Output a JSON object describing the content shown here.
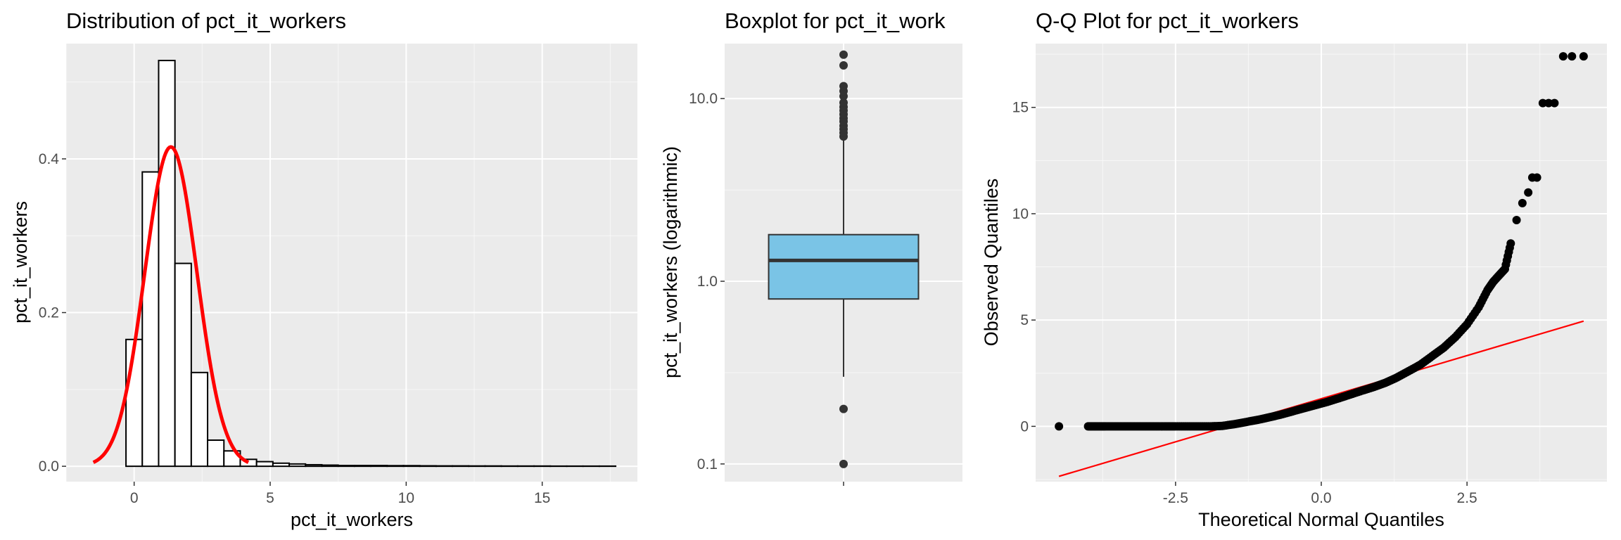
{
  "colors": {
    "panel_bg": "#ebebeb",
    "grid_major": "#ffffff",
    "density": "#ff0000",
    "box_fill": "#7ac4e6",
    "qq_line": "#ff0000",
    "points": "#000000"
  },
  "chart_data": [
    {
      "type": "bar",
      "subtype": "histogram",
      "title": "Distribution of pct_it_workers",
      "xlabel": "pct_it_workers",
      "ylabel": "pct_it_workers",
      "xlim": [
        -2.5,
        18.5
      ],
      "ylim": [
        -0.02,
        0.55
      ],
      "xticks": [
        0,
        5,
        10,
        15
      ],
      "xtick_labels": [
        "0",
        "5",
        "10",
        "15"
      ],
      "yticks": [
        0.0,
        0.2,
        0.4
      ],
      "ytick_labels": [
        "0.0",
        "0.2",
        "0.4"
      ],
      "grid": true,
      "bin_width": 0.6,
      "bins_start": [
        -1.5,
        -0.9,
        -0.3,
        0.3,
        0.9,
        1.5,
        2.1,
        2.7,
        3.3,
        3.9,
        4.5,
        5.1,
        5.7,
        6.3,
        6.9,
        7.5,
        8.1,
        8.7,
        9.3,
        9.9,
        10.5,
        11.1,
        11.7,
        12.3,
        12.9,
        13.5,
        14.1,
        14.7,
        15.3,
        15.9,
        16.5,
        17.1
      ],
      "density": [
        0,
        0,
        0.165,
        0.383,
        0.528,
        0.264,
        0.122,
        0.034,
        0.02,
        0.009,
        0.006,
        0.004,
        0.003,
        0.002,
        0.0015,
        0.001,
        0.001,
        0.001,
        0.0008,
        0.0008,
        0.0006,
        0.0005,
        0.0005,
        0.0004,
        0.0004,
        0.0003,
        0.0003,
        0.0003,
        0.0002,
        0.0002,
        0.0002,
        0.0002
      ],
      "normal_curve": {
        "mean": 1.35,
        "sd": 0.96,
        "x_range": [
          -1.5,
          4.2
        ]
      }
    },
    {
      "type": "box",
      "title": "Boxplot for pct_it_work",
      "ylabel": "pct_it_workers (logarithmic)",
      "scale": "log10",
      "ylim": [
        0.08,
        20
      ],
      "yticks": [
        0.1,
        1.0,
        10.0
      ],
      "ytick_labels": [
        "0.1",
        "1.0",
        "10.0"
      ],
      "grid": true,
      "stats": {
        "lower_whisker": 0.3,
        "q1": 0.8,
        "median": 1.3,
        "q3": 1.8,
        "upper_whisker": 6.0
      },
      "outliers": [
        0.1,
        0.2,
        6.2,
        6.5,
        6.8,
        7.1,
        7.5,
        7.8,
        8.2,
        8.6,
        9.0,
        9.5,
        10.3,
        11.0,
        11.7,
        15.2,
        17.4
      ]
    },
    {
      "type": "scatter",
      "subtype": "qq",
      "title": "Q-Q Plot for pct_it_workers",
      "xlabel": "Theoretical Normal Quantiles",
      "ylabel": "Observed Quantiles",
      "xlim": [
        -4.9,
        4.9
      ],
      "ylim": [
        -2.6,
        18.0
      ],
      "xticks": [
        -2.5,
        0.0,
        2.5
      ],
      "xtick_labels": [
        "-2.5",
        "0.0",
        "2.5"
      ],
      "yticks": [
        0,
        5,
        10,
        15
      ],
      "ytick_labels": [
        "0",
        "5",
        "10",
        "15"
      ],
      "grid": true,
      "reference_line": {
        "x": [
          -4.5,
          4.5
        ],
        "y": [
          -2.35,
          4.95
        ]
      },
      "points": [
        [
          -4.5,
          0
        ],
        [
          -4.0,
          0
        ],
        [
          -3.85,
          0
        ],
        [
          -3.7,
          0
        ],
        [
          -3.5,
          0
        ],
        [
          -3.3,
          0
        ],
        [
          -3.1,
          0
        ],
        [
          -2.9,
          0
        ],
        [
          -2.7,
          0
        ],
        [
          -2.5,
          0
        ],
        [
          -2.3,
          0
        ],
        [
          -2.1,
          0
        ],
        [
          -1.9,
          0
        ],
        [
          -1.7,
          0.02
        ],
        [
          -1.5,
          0.1
        ],
        [
          -1.3,
          0.2
        ],
        [
          -1.1,
          0.3
        ],
        [
          -0.9,
          0.42
        ],
        [
          -0.7,
          0.55
        ],
        [
          -0.5,
          0.7
        ],
        [
          -0.3,
          0.85
        ],
        [
          -0.1,
          1.0
        ],
        [
          0.1,
          1.15
        ],
        [
          0.3,
          1.32
        ],
        [
          0.5,
          1.5
        ],
        [
          0.7,
          1.68
        ],
        [
          0.9,
          1.85
        ],
        [
          1.1,
          2.05
        ],
        [
          1.3,
          2.3
        ],
        [
          1.5,
          2.6
        ],
        [
          1.7,
          2.9
        ],
        [
          1.9,
          3.3
        ],
        [
          2.1,
          3.7
        ],
        [
          2.3,
          4.2
        ],
        [
          2.5,
          4.8
        ],
        [
          2.7,
          5.6
        ],
        [
          2.85,
          6.4
        ],
        [
          2.95,
          6.8
        ],
        [
          3.05,
          7.1
        ],
        [
          3.15,
          7.4
        ],
        [
          3.25,
          8.6
        ],
        [
          3.35,
          9.7
        ],
        [
          3.45,
          10.5
        ],
        [
          3.55,
          11.0
        ],
        [
          3.62,
          11.7
        ],
        [
          3.7,
          11.7
        ],
        [
          3.8,
          15.2
        ],
        [
          3.9,
          15.2
        ],
        [
          4.0,
          15.2
        ],
        [
          4.15,
          17.4
        ],
        [
          4.3,
          17.4
        ],
        [
          4.5,
          17.4
        ]
      ]
    }
  ]
}
